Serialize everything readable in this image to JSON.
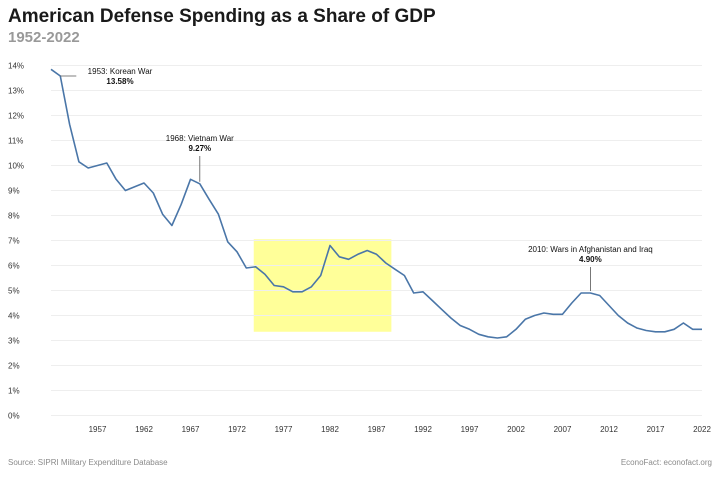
{
  "header": {
    "title": "American Defense Spending as a Share of GDP",
    "subtitle": "1952-2022"
  },
  "footer": {
    "source": "Source: SIPRI Military Expenditure Database",
    "credit": "EconoFact: econofact.org"
  },
  "colors": {
    "line": "#4a76a8",
    "highlight": "#ffff99",
    "grid": "#eeeeee",
    "annotation_line": "#555555"
  },
  "chart_data": {
    "type": "line",
    "title": "American Defense Spending as a Share of GDP",
    "subtitle": "1952-2022",
    "xlabel": "",
    "ylabel": "",
    "xlim": [
      1952,
      2022
    ],
    "ylim": [
      0,
      14
    ],
    "y_unit": "%",
    "grid": "horizontal",
    "x_ticks": [
      1957,
      1962,
      1967,
      1972,
      1977,
      1982,
      1987,
      1992,
      1997,
      2002,
      2007,
      2012,
      2017,
      2022
    ],
    "y_ticks": [
      0,
      1,
      2,
      3,
      4,
      5,
      6,
      7,
      8,
      9,
      10,
      11,
      12,
      13,
      14
    ],
    "y_tick_labels": [
      "0%",
      "1%",
      "2%",
      "3%",
      "4%",
      "5%",
      "6%",
      "7%",
      "8%",
      "9%",
      "10%",
      "11%",
      "12%",
      "13%",
      "14%"
    ],
    "series": [
      {
        "x": [
          1952,
          1953,
          1954,
          1955,
          1956,
          1957,
          1958,
          1959,
          1960,
          1961,
          1962,
          1963,
          1964,
          1965,
          1966,
          1967,
          1968,
          1969,
          1970,
          1971,
          1972,
          1973,
          1974,
          1975,
          1976,
          1977,
          1978,
          1979,
          1980,
          1981,
          1982,
          1983,
          1984,
          1985,
          1986,
          1987,
          1988,
          1989,
          1990,
          1991,
          1992,
          1993,
          1994,
          1995,
          1996,
          1997,
          1998,
          1999,
          2000,
          2001,
          2002,
          2003,
          2004,
          2005,
          2006,
          2007,
          2008,
          2009,
          2010,
          2011,
          2012,
          2013,
          2014,
          2015,
          2016,
          2017,
          2018,
          2019,
          2020,
          2021,
          2022
        ],
        "values": [
          13.85,
          13.58,
          11.65,
          10.15,
          9.9,
          10.0,
          10.1,
          9.45,
          9.0,
          9.15,
          9.3,
          8.9,
          8.05,
          7.6,
          8.45,
          9.45,
          9.27,
          8.65,
          8.05,
          6.95,
          6.55,
          5.9,
          5.95,
          5.65,
          5.2,
          5.15,
          4.95,
          4.95,
          5.15,
          5.6,
          6.8,
          6.35,
          6.25,
          6.45,
          6.6,
          6.45,
          6.1,
          5.85,
          5.6,
          4.9,
          4.95,
          4.6,
          4.25,
          3.9,
          3.6,
          3.45,
          3.25,
          3.15,
          3.1,
          3.15,
          3.45,
          3.85,
          4.0,
          4.1,
          4.05,
          4.05,
          4.5,
          4.9,
          4.9,
          4.8,
          4.4,
          4.0,
          3.7,
          3.5,
          3.4,
          3.35,
          3.35,
          3.45,
          3.7,
          3.45,
          3.45
        ]
      }
    ],
    "annotations": [
      {
        "label": "1953: Korean War",
        "value_label": "13.58%",
        "x": 1953,
        "y": 13.58
      },
      {
        "label": "1968: Vietnam War",
        "value_label": "9.27%",
        "x": 1968,
        "y": 9.27
      },
      {
        "label": "2010: Wars in Afghanistan and Iraq",
        "value_label": "4.90%",
        "x": 2010,
        "y": 4.9
      }
    ],
    "highlight": {
      "x": [
        1973.8,
        1988.6
      ],
      "y": [
        3.35,
        7.05
      ]
    }
  }
}
